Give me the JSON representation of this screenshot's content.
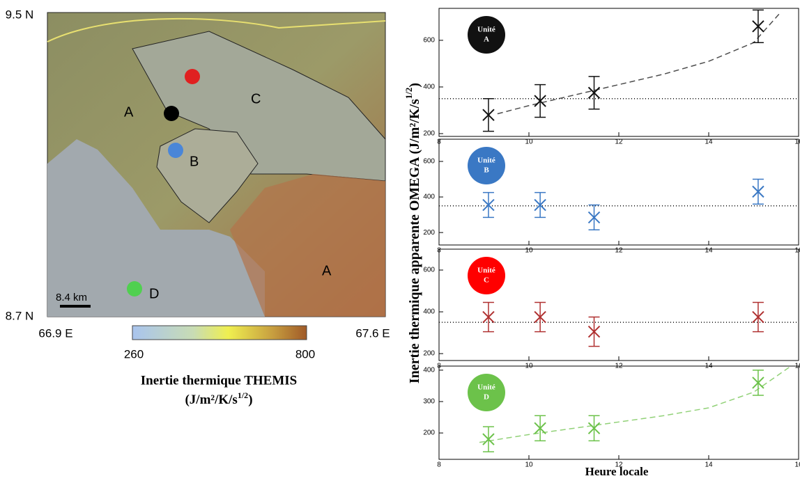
{
  "map": {
    "lat_labels": [
      "9.5 N",
      "8.7 N"
    ],
    "lon_labels": [
      "66.9 E",
      "67.6 E"
    ],
    "unit_labels": [
      "A",
      "C",
      "B",
      "A",
      "D"
    ],
    "scale": "8.4 km",
    "colorbar": {
      "min": 260,
      "max": 800
    },
    "caption": [
      "Inertie thermique THEMIS",
      "(J/m²/K/s",
      "1/2",
      ")"
    ]
  },
  "figure": {
    "ylabel": [
      "Inertie thermique apparente OMEGA (J/m²/K/s",
      "1/2",
      ")"
    ],
    "xlabel": "Heure locale"
  },
  "chart_data": [
    {
      "type": "scatter",
      "badge": [
        "Unité",
        "A"
      ],
      "color": "#111111",
      "x": [
        9.1,
        10.25,
        11.45,
        15.1
      ],
      "values": [
        280,
        340,
        375,
        660
      ],
      "errors": [
        70,
        70,
        70,
        70
      ],
      "xlim": [
        8,
        16
      ],
      "xticks": [
        8,
        10,
        12,
        14,
        16
      ],
      "ylim": [
        188,
        737
      ],
      "yticks": [
        200,
        400,
        600
      ],
      "ref_line": 350,
      "fit": {
        "x": [
          9.3,
          10,
          11,
          12,
          13,
          14,
          15,
          15.6
        ],
        "y": [
          285,
          320,
          365,
          410,
          455,
          510,
          590,
          720
        ]
      }
    },
    {
      "type": "scatter",
      "badge": [
        "Unité",
        "B"
      ],
      "color": "#3a78c4",
      "x": [
        9.1,
        10.25,
        11.45,
        15.1
      ],
      "values": [
        355,
        355,
        285,
        430
      ],
      "errors": [
        70,
        70,
        70,
        70
      ],
      "xlim": [
        8,
        16
      ],
      "xticks": [
        8,
        10,
        12,
        14,
        16
      ],
      "ylim": [
        130,
        725
      ],
      "yticks": [
        200,
        400,
        600
      ],
      "ref_line": 350
    },
    {
      "type": "scatter",
      "badge": [
        "Unité",
        "C"
      ],
      "color": "#b03030",
      "x": [
        9.1,
        10.25,
        11.45,
        15.1
      ],
      "values": [
        375,
        375,
        305,
        375
      ],
      "errors": [
        70,
        70,
        70,
        70
      ],
      "xlim": [
        8,
        16
      ],
      "xticks": [
        8,
        10,
        12,
        14,
        16
      ],
      "ylim": [
        167,
        700
      ],
      "yticks": [
        200,
        400,
        600
      ],
      "ref_line": 350
    },
    {
      "type": "scatter",
      "badge": [
        "Unité",
        "D"
      ],
      "color": "#6cc24a",
      "x": [
        9.1,
        10.25,
        11.45,
        15.1
      ],
      "values": [
        180,
        215,
        215,
        360
      ],
      "errors": [
        40,
        40,
        40,
        40
      ],
      "xlim": [
        8,
        16
      ],
      "xticks": [
        8,
        10,
        12,
        14,
        16
      ],
      "ylim": [
        116,
        413
      ],
      "yticks": [
        200,
        300,
        400
      ],
      "fit": {
        "x": [
          8.9,
          10,
          11,
          12,
          13,
          14,
          15,
          15.8
        ],
        "y": [
          170,
          195,
          215,
          235,
          255,
          280,
          330,
          410
        ]
      }
    }
  ]
}
